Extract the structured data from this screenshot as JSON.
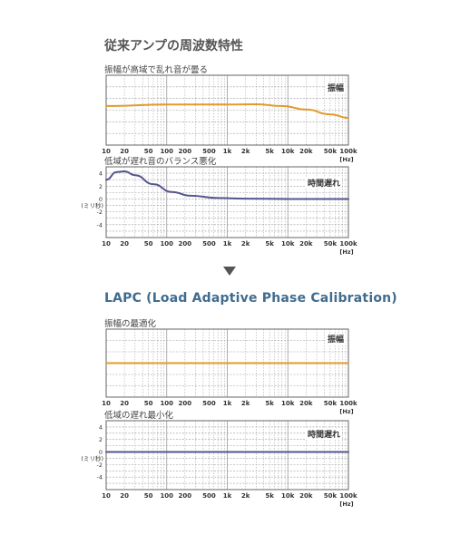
{
  "sections": [
    {
      "title": "従来アンプの周波数特性",
      "charts": [
        {
          "subtitle": "振幅が高域で乱れ音が曇る",
          "inner_label": "振幅"
        },
        {
          "subtitle": "低域が遅れ音のバランス悪化",
          "inner_label": "時間遅れ"
        }
      ]
    },
    {
      "title": "LAPC (Load Adaptive Phase Calibration)",
      "charts": [
        {
          "subtitle": "振幅の最適化",
          "inner_label": "振幅"
        },
        {
          "subtitle": "低域の遅れ最小化",
          "inner_label": "時間遅れ"
        }
      ]
    }
  ],
  "colors": {
    "amplitude": "#e39a2b",
    "delay": "#55558f",
    "grid": "#9a9a9a",
    "frame": "#666666"
  },
  "chart_data": [
    {
      "type": "line",
      "name": "conventional-amplitude",
      "x_ticks": [
        "10",
        "20",
        "50",
        "100",
        "200",
        "500",
        "1k",
        "2k",
        "5k",
        "10k",
        "20k",
        "50k",
        "100k"
      ],
      "x_unit": "[Hz]",
      "x_scale": "log",
      "xlim": [
        10,
        100000
      ],
      "ylim": [
        -5,
        5
      ],
      "grid": true,
      "y_ticks": [],
      "series": [
        {
          "points": [
            [
              10,
              0.6
            ],
            [
              100,
              0.8
            ],
            [
              1000,
              0.8
            ],
            [
              3000,
              0.85
            ],
            [
              8000,
              0.6
            ],
            [
              20000,
              0.1
            ],
            [
              50000,
              -0.6
            ],
            [
              100000,
              -1.1
            ]
          ]
        }
      ]
    },
    {
      "type": "line",
      "name": "conventional-delay",
      "x_ticks": [
        "10",
        "20",
        "50",
        "100",
        "200",
        "500",
        "1k",
        "2k",
        "5k",
        "10k",
        "20k",
        "50k",
        "100k"
      ],
      "x_unit": "[Hz]",
      "x_scale": "log",
      "xlim": [
        10,
        100000
      ],
      "ylim": [
        -6,
        5
      ],
      "grid": true,
      "y_ticks": [
        "4",
        "2",
        "0",
        "-2",
        "-4"
      ],
      "y_unit": "(ミリ秒)",
      "series": [
        {
          "points": [
            [
              10,
              3
            ],
            [
              15,
              4.2
            ],
            [
              20,
              4.3
            ],
            [
              30,
              3.7
            ],
            [
              60,
              2.3
            ],
            [
              120,
              1.1
            ],
            [
              250,
              0.5
            ],
            [
              700,
              0.15
            ],
            [
              2000,
              0.05
            ],
            [
              10000,
              0.0
            ],
            [
              100000,
              0.0
            ]
          ]
        }
      ]
    },
    {
      "type": "line",
      "name": "lapc-amplitude",
      "x_ticks": [
        "10",
        "20",
        "50",
        "100",
        "200",
        "500",
        "1k",
        "2k",
        "5k",
        "10k",
        "20k",
        "50k",
        "100k"
      ],
      "x_unit": "[Hz]",
      "x_scale": "log",
      "xlim": [
        10,
        100000
      ],
      "ylim": [
        -5,
        5
      ],
      "grid": true,
      "y_ticks": [],
      "series": [
        {
          "points": [
            [
              10,
              0.0
            ],
            [
              100000,
              0.0
            ]
          ]
        }
      ]
    },
    {
      "type": "line",
      "name": "lapc-delay",
      "x_ticks": [
        "10",
        "20",
        "50",
        "100",
        "200",
        "500",
        "1k",
        "2k",
        "5k",
        "10k",
        "20k",
        "50k",
        "100k"
      ],
      "x_unit": "[Hz]",
      "x_scale": "log",
      "xlim": [
        10,
        100000
      ],
      "ylim": [
        -6,
        5
      ],
      "grid": true,
      "y_ticks": [
        "4",
        "2",
        "0",
        "-2",
        "-4"
      ],
      "y_unit": "(ミリ秒)",
      "series": [
        {
          "points": [
            [
              10,
              0.0
            ],
            [
              100000,
              0.0
            ]
          ]
        }
      ]
    }
  ]
}
